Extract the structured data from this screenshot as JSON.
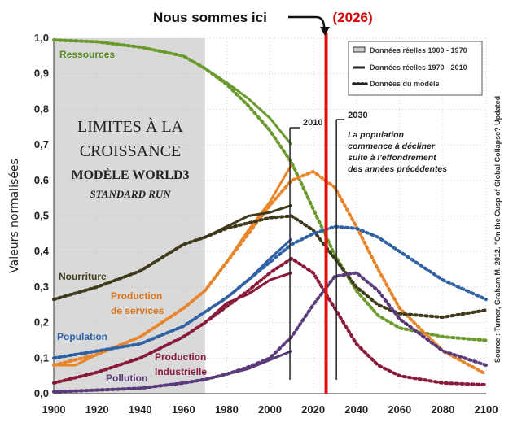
{
  "chart_data": {
    "type": "line",
    "title_lines": [
      "LIMITES À LA",
      "CROISSANCE",
      "MODÈLE WORLD3",
      "STANDARD RUN"
    ],
    "ylabel": "Valeurs normalisées",
    "xlabel": "",
    "xlim": [
      1900,
      2100
    ],
    "ylim": [
      0,
      1.0
    ],
    "x_ticks": [
      1900,
      1920,
      1940,
      1960,
      1980,
      2000,
      2020,
      2040,
      2060,
      2080,
      2100
    ],
    "y_ticks": [
      0,
      0.1,
      0.2,
      0.3,
      0.4,
      0.5,
      0.6,
      0.7,
      0.8,
      0.9,
      1.0
    ],
    "y_tick_labels": [
      "0,0",
      "0,1",
      "0,2",
      "0,3",
      "0,4",
      "0,5",
      "0,6",
      "0,7",
      "0,8",
      "0,9",
      "1,0"
    ],
    "grid": true,
    "shaded_region": [
      1900,
      1970
    ],
    "legend": {
      "placement": "top-right",
      "entries": [
        "Données réelles 1900 - 1970",
        "Données réelles 1970 - 2010",
        "Données du modèle"
      ]
    },
    "annotations": {
      "now_text": "Nous sommes ici",
      "now_year_text": "(2026)",
      "now_year": 2026,
      "marker_2010": "2010",
      "marker_2010_year": 2010,
      "marker_2030": "2030",
      "marker_2030_year": 2030,
      "note_lines": [
        "La population",
        "commence à décliner",
        "suite à l'effondrement",
        "des années précédentes"
      ],
      "source": "Source : Turner, Graham M. 2012. \"On the Cusp of Global Collapse? Updated"
    },
    "series": [
      {
        "name": "Ressources",
        "color": "#6b9a2c",
        "label_color": "#5a8a1e",
        "observed": [
          [
            1900,
            0.995
          ],
          [
            1920,
            0.99
          ],
          [
            1940,
            0.975
          ],
          [
            1960,
            0.95
          ],
          [
            1970,
            0.915
          ],
          [
            1980,
            0.875
          ],
          [
            1990,
            0.83
          ],
          [
            2000,
            0.775
          ],
          [
            2010,
            0.7
          ]
        ],
        "model": [
          [
            1900,
            0.995
          ],
          [
            1920,
            0.99
          ],
          [
            1940,
            0.975
          ],
          [
            1960,
            0.95
          ],
          [
            1970,
            0.915
          ],
          [
            1980,
            0.87
          ],
          [
            1990,
            0.81
          ],
          [
            2000,
            0.74
          ],
          [
            2010,
            0.65
          ],
          [
            2020,
            0.52
          ],
          [
            2030,
            0.39
          ],
          [
            2040,
            0.29
          ],
          [
            2050,
            0.22
          ],
          [
            2060,
            0.185
          ],
          [
            2080,
            0.16
          ],
          [
            2100,
            0.15
          ]
        ]
      },
      {
        "name": "Production de services",
        "color": "#e8852a",
        "label_color": "#d9741a",
        "observed": [
          [
            1900,
            0.08
          ],
          [
            1910,
            0.08
          ],
          [
            1920,
            0.11
          ],
          [
            1940,
            0.16
          ],
          [
            1960,
            0.24
          ],
          [
            1970,
            0.29
          ],
          [
            1980,
            0.37
          ],
          [
            1990,
            0.46
          ],
          [
            2000,
            0.54
          ],
          [
            2010,
            0.645
          ]
        ],
        "model": [
          [
            1900,
            0.08
          ],
          [
            1920,
            0.11
          ],
          [
            1940,
            0.16
          ],
          [
            1960,
            0.24
          ],
          [
            1970,
            0.29
          ],
          [
            1980,
            0.37
          ],
          [
            1990,
            0.45
          ],
          [
            2000,
            0.53
          ],
          [
            2010,
            0.6
          ],
          [
            2020,
            0.625
          ],
          [
            2030,
            0.58
          ],
          [
            2040,
            0.47
          ],
          [
            2050,
            0.35
          ],
          [
            2060,
            0.24
          ],
          [
            2080,
            0.12
          ],
          [
            2100,
            0.055
          ]
        ]
      },
      {
        "name": "Nourriture",
        "color": "#3f3a1c",
        "label_color": "#3f3a1c",
        "observed": [
          [
            1900,
            0.265
          ],
          [
            1920,
            0.3
          ],
          [
            1940,
            0.345
          ],
          [
            1960,
            0.42
          ],
          [
            1970,
            0.44
          ],
          [
            1980,
            0.47
          ],
          [
            1990,
            0.5
          ],
          [
            2000,
            0.51
          ],
          [
            2010,
            0.53
          ]
        ],
        "model": [
          [
            1900,
            0.265
          ],
          [
            1920,
            0.3
          ],
          [
            1940,
            0.345
          ],
          [
            1960,
            0.42
          ],
          [
            1970,
            0.44
          ],
          [
            1980,
            0.465
          ],
          [
            1990,
            0.48
          ],
          [
            2000,
            0.495
          ],
          [
            2010,
            0.5
          ],
          [
            2020,
            0.46
          ],
          [
            2030,
            0.38
          ],
          [
            2040,
            0.3
          ],
          [
            2050,
            0.25
          ],
          [
            2060,
            0.225
          ],
          [
            2080,
            0.215
          ],
          [
            2100,
            0.235
          ]
        ]
      },
      {
        "name": "Population",
        "color": "#2f62a5",
        "label_color": "#2f62a5",
        "observed": [
          [
            1900,
            0.1
          ],
          [
            1920,
            0.12
          ],
          [
            1940,
            0.14
          ],
          [
            1960,
            0.19
          ],
          [
            1970,
            0.23
          ],
          [
            1980,
            0.27
          ],
          [
            1990,
            0.32
          ],
          [
            2000,
            0.38
          ],
          [
            2010,
            0.435
          ]
        ],
        "model": [
          [
            1900,
            0.1
          ],
          [
            1920,
            0.12
          ],
          [
            1940,
            0.14
          ],
          [
            1960,
            0.19
          ],
          [
            1970,
            0.23
          ],
          [
            1980,
            0.27
          ],
          [
            1990,
            0.32
          ],
          [
            2000,
            0.37
          ],
          [
            2010,
            0.42
          ],
          [
            2020,
            0.45
          ],
          [
            2030,
            0.47
          ],
          [
            2040,
            0.465
          ],
          [
            2050,
            0.44
          ],
          [
            2060,
            0.4
          ],
          [
            2080,
            0.32
          ],
          [
            2100,
            0.265
          ]
        ]
      },
      {
        "name": "Production Industrielle",
        "color": "#8b1a3a",
        "label_color": "#8b1a3a",
        "observed": [
          [
            1900,
            0.03
          ],
          [
            1920,
            0.06
          ],
          [
            1940,
            0.1
          ],
          [
            1960,
            0.16
          ],
          [
            1970,
            0.2
          ],
          [
            1980,
            0.255
          ],
          [
            1990,
            0.28
          ],
          [
            2000,
            0.32
          ],
          [
            2010,
            0.34
          ]
        ],
        "model": [
          [
            1900,
            0.03
          ],
          [
            1920,
            0.06
          ],
          [
            1940,
            0.1
          ],
          [
            1960,
            0.16
          ],
          [
            1970,
            0.2
          ],
          [
            1980,
            0.245
          ],
          [
            1990,
            0.29
          ],
          [
            2000,
            0.34
          ],
          [
            2010,
            0.38
          ],
          [
            2020,
            0.34
          ],
          [
            2030,
            0.24
          ],
          [
            2040,
            0.14
          ],
          [
            2050,
            0.08
          ],
          [
            2060,
            0.05
          ],
          [
            2080,
            0.03
          ],
          [
            2100,
            0.025
          ]
        ]
      },
      {
        "name": "Pollution",
        "color": "#5b3a7c",
        "label_color": "#5b3a7c",
        "observed": [
          [
            1900,
            0.005
          ],
          [
            1920,
            0.01
          ],
          [
            1940,
            0.015
          ],
          [
            1960,
            0.03
          ],
          [
            1970,
            0.04
          ],
          [
            1980,
            0.055
          ],
          [
            1990,
            0.07
          ],
          [
            2000,
            0.095
          ],
          [
            2010,
            0.12
          ]
        ],
        "model": [
          [
            1900,
            0.005
          ],
          [
            1920,
            0.01
          ],
          [
            1940,
            0.015
          ],
          [
            1960,
            0.03
          ],
          [
            1970,
            0.04
          ],
          [
            1980,
            0.055
          ],
          [
            1990,
            0.075
          ],
          [
            2000,
            0.1
          ],
          [
            2010,
            0.16
          ],
          [
            2020,
            0.25
          ],
          [
            2030,
            0.33
          ],
          [
            2040,
            0.34
          ],
          [
            2050,
            0.29
          ],
          [
            2060,
            0.21
          ],
          [
            2080,
            0.12
          ],
          [
            2100,
            0.08
          ]
        ]
      }
    ]
  },
  "series_label_lines": {
    "Ressources": [
      "Ressources"
    ],
    "Production de services": [
      "Production",
      "de services"
    ],
    "Nourriture": [
      "Nourriture"
    ],
    "Population": [
      "Population"
    ],
    "Production Industrielle": [
      "Production",
      "Industrielle"
    ],
    "Pollution": [
      "Pollution"
    ]
  }
}
